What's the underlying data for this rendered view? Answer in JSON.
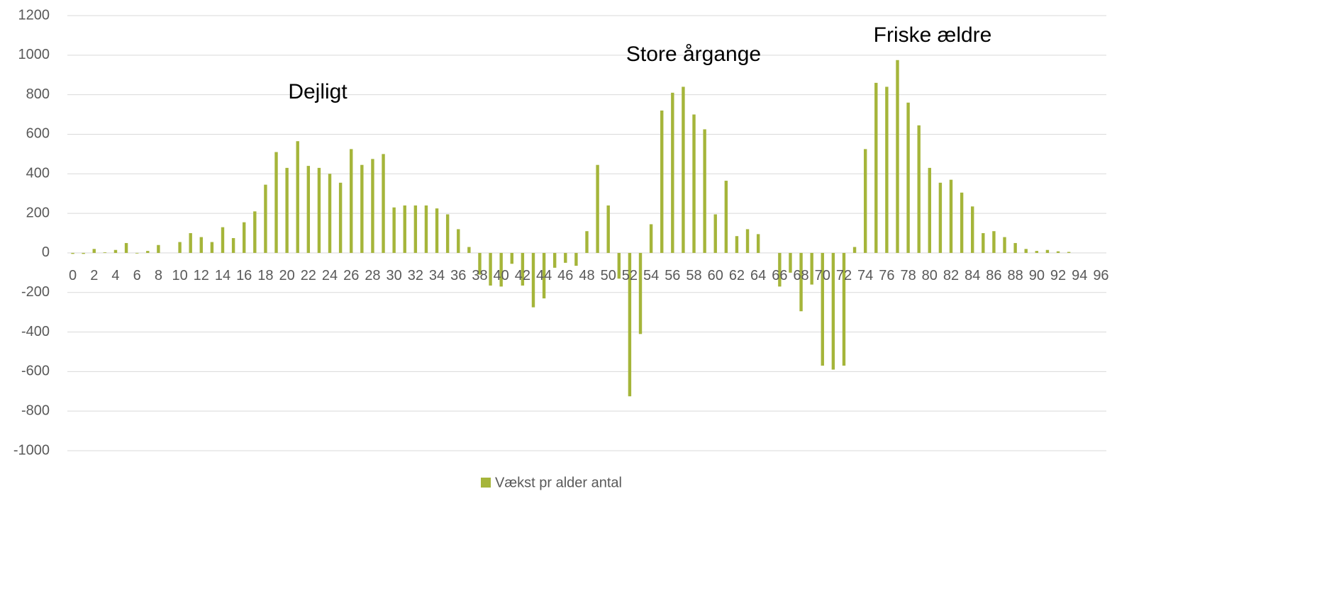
{
  "chart_data": {
    "type": "bar",
    "categories": [
      0,
      null,
      2,
      null,
      4,
      null,
      6,
      null,
      8,
      null,
      10,
      null,
      12,
      null,
      14,
      null,
      16,
      null,
      18,
      null,
      20,
      null,
      22,
      null,
      24,
      null,
      26,
      null,
      28,
      null,
      30,
      null,
      32,
      null,
      34,
      null,
      36,
      null,
      38,
      null,
      40,
      null,
      42,
      null,
      44,
      null,
      46,
      null,
      48,
      null,
      50,
      null,
      52,
      null,
      54,
      null,
      56,
      null,
      58,
      null,
      60,
      null,
      62,
      null,
      64,
      null,
      66,
      null,
      68,
      null,
      70,
      null,
      72,
      null,
      74,
      null,
      76,
      null,
      78,
      null,
      80,
      null,
      82,
      null,
      84,
      null,
      86,
      null,
      88,
      null,
      90,
      null,
      92,
      null,
      94,
      null,
      96
    ],
    "series": [
      {
        "name": "Vækst pr alder antal",
        "color": "#a5b53a",
        "values": [
          -5,
          -5,
          20,
          3,
          15,
          50,
          -3,
          10,
          40,
          0,
          55,
          100,
          80,
          55,
          130,
          75,
          155,
          210,
          345,
          510,
          430,
          565,
          440,
          430,
          400,
          355,
          525,
          445,
          475,
          500,
          230,
          240,
          240,
          240,
          225,
          195,
          120,
          30,
          -110,
          -165,
          -170,
          -55,
          -165,
          -275,
          -230,
          -75,
          -50,
          -65,
          110,
          445,
          240,
          -130,
          -725,
          -410,
          145,
          720,
          810,
          840,
          700,
          625,
          195,
          365,
          85,
          120,
          95,
          0,
          -170,
          -100,
          -295,
          -160,
          -570,
          -590,
          -570,
          30,
          525,
          860,
          840,
          975,
          760,
          645,
          430,
          355,
          370,
          305,
          235,
          100,
          110,
          80,
          50,
          20,
          10,
          15,
          8,
          5,
          0,
          0,
          0
        ]
      }
    ],
    "ylim": [
      -1000,
      1200
    ],
    "yticks": [
      -1000,
      -800,
      -600,
      -400,
      -200,
      0,
      200,
      400,
      600,
      800,
      1000,
      1200
    ],
    "grid": true,
    "annotations": [
      "Dejligt",
      "Store årgange",
      "Friske ældre"
    ],
    "legend": "bottom"
  }
}
